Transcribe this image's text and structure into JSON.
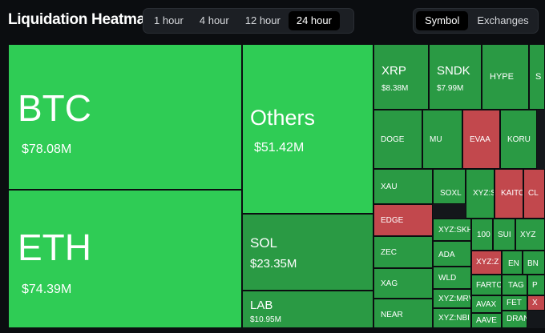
{
  "header": {
    "title": "Liquidation Heatmap",
    "time_ranges": [
      "1 hour",
      "4 hour",
      "12 hour",
      "24 hour"
    ],
    "selected_time_range": "24 hour",
    "modes": [
      "Symbol",
      "Exchanges"
    ],
    "selected_mode": "Symbol"
  },
  "colors": {
    "bright_green": "#2fcc55",
    "green": "#2a9a44",
    "red": "#c2484d",
    "background": "#0b0d10"
  },
  "tiles": [
    {
      "symbol": "BTC",
      "value": "$78.08M",
      "color": "bright"
    },
    {
      "symbol": "ETH",
      "value": "$74.39M",
      "color": "bright"
    },
    {
      "symbol": "Others",
      "value": "$51.42M",
      "color": "bright"
    },
    {
      "symbol": "SOL",
      "value": "$23.35M",
      "color": "green"
    },
    {
      "symbol": "LAB",
      "value": "$10.95M",
      "color": "green"
    },
    {
      "symbol": "XRP",
      "value": "$8.38M",
      "color": "green"
    },
    {
      "symbol": "SNDK",
      "value": "$7.99M",
      "color": "green"
    },
    {
      "symbol": "HYPE",
      "value": "",
      "color": "green"
    },
    {
      "symbol": "S",
      "value": "",
      "color": "green"
    },
    {
      "symbol": "DOGE",
      "value": "",
      "color": "green"
    },
    {
      "symbol": "MU",
      "value": "",
      "color": "green"
    },
    {
      "symbol": "EVAA",
      "value": "",
      "color": "red"
    },
    {
      "symbol": "KORU",
      "value": "",
      "color": "green"
    },
    {
      "symbol": "XAU",
      "value": "",
      "color": "green"
    },
    {
      "symbol": "SOXL",
      "value": "",
      "color": "green"
    },
    {
      "symbol": "XYZ:S",
      "value": "",
      "color": "green"
    },
    {
      "symbol": "KAITO",
      "value": "",
      "color": "red"
    },
    {
      "symbol": "CL",
      "value": "",
      "color": "red"
    },
    {
      "symbol": "EDGE",
      "value": "",
      "color": "red"
    },
    {
      "symbol": "XYZ:SKH",
      "value": "",
      "color": "green"
    },
    {
      "symbol": "100",
      "value": "",
      "color": "green"
    },
    {
      "symbol": "SUI",
      "value": "",
      "color": "green"
    },
    {
      "symbol": "XYZ",
      "value": "",
      "color": "green"
    },
    {
      "symbol": "ZEC",
      "value": "",
      "color": "green"
    },
    {
      "symbol": "ADA",
      "value": "",
      "color": "green"
    },
    {
      "symbol": "XYZ:Z",
      "value": "",
      "color": "red"
    },
    {
      "symbol": "EN",
      "value": "",
      "color": "green"
    },
    {
      "symbol": "BN",
      "value": "",
      "color": "green"
    },
    {
      "symbol": "XAG",
      "value": "",
      "color": "green"
    },
    {
      "symbol": "WLD",
      "value": "",
      "color": "green"
    },
    {
      "symbol": "FARTC",
      "value": "",
      "color": "green"
    },
    {
      "symbol": "TAG",
      "value": "",
      "color": "green"
    },
    {
      "symbol": "P",
      "value": "",
      "color": "green"
    },
    {
      "symbol": "NEAR",
      "value": "",
      "color": "green"
    },
    {
      "symbol": "XYZ:MRV",
      "value": "",
      "color": "green"
    },
    {
      "symbol": "AVAX",
      "value": "",
      "color": "green"
    },
    {
      "symbol": "FET",
      "value": "",
      "color": "green"
    },
    {
      "symbol": "X",
      "value": "",
      "color": "red"
    },
    {
      "symbol": "XYZ:NBI",
      "value": "",
      "color": "green"
    },
    {
      "symbol": "AAVE",
      "value": "",
      "color": "green"
    },
    {
      "symbol": "DRAN",
      "value": "",
      "color": "green"
    }
  ]
}
